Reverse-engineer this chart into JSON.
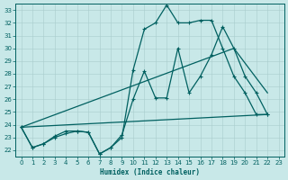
{
  "xlabel": "Humidex (Indice chaleur)",
  "xlim": [
    -0.5,
    23.5
  ],
  "ylim": [
    21.5,
    33.5
  ],
  "xticks": [
    0,
    1,
    2,
    3,
    4,
    5,
    6,
    7,
    8,
    9,
    10,
    11,
    12,
    13,
    14,
    15,
    16,
    17,
    18,
    19,
    20,
    21,
    22,
    23
  ],
  "yticks": [
    22,
    23,
    24,
    25,
    26,
    27,
    28,
    29,
    30,
    31,
    32,
    33
  ],
  "bg_color": "#c8e8e8",
  "line_color": "#006060",
  "grid_color": "#a8cccc",
  "line1_x": [
    0,
    1,
    2,
    3,
    4,
    5,
    6,
    7,
    8,
    9,
    10,
    11,
    12,
    13,
    14,
    15,
    16,
    17,
    18,
    19,
    20,
    21,
    22
  ],
  "line1_y": [
    23.8,
    22.2,
    22.5,
    23.0,
    23.3,
    23.5,
    23.4,
    21.7,
    22.2,
    23.0,
    28.3,
    31.5,
    32.0,
    33.4,
    32.0,
    32.0,
    32.2,
    32.2,
    30.0,
    27.8,
    26.5,
    24.8,
    24.8
  ],
  "line2_x": [
    0,
    1,
    2,
    3,
    4,
    5,
    6,
    7,
    8,
    9,
    10,
    11,
    12,
    13,
    14,
    15,
    16,
    17,
    18,
    19,
    20,
    21,
    22
  ],
  "line2_y": [
    23.8,
    22.2,
    22.5,
    23.1,
    23.5,
    23.5,
    23.4,
    21.7,
    22.2,
    23.2,
    26.0,
    28.2,
    26.1,
    26.1,
    30.0,
    26.5,
    27.8,
    29.5,
    31.7,
    30.0,
    27.8,
    26.5,
    24.8
  ],
  "line3_x": [
    0,
    19,
    22
  ],
  "line3_y": [
    23.8,
    30.0,
    26.5
  ],
  "line4_x": [
    0,
    22
  ],
  "line4_y": [
    23.8,
    24.8
  ]
}
